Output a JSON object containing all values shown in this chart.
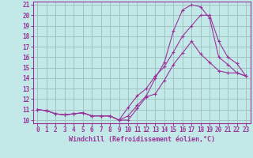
{
  "background_color": "#c2e8e8",
  "grid_color": "#9bbfbf",
  "line_color": "#993399",
  "marker": "+",
  "xlim": [
    -0.5,
    23.5
  ],
  "ylim": [
    9.7,
    21.3
  ],
  "xticks": [
    0,
    1,
    2,
    3,
    4,
    5,
    6,
    7,
    8,
    9,
    10,
    11,
    12,
    13,
    14,
    15,
    16,
    17,
    18,
    19,
    20,
    21,
    22,
    23
  ],
  "yticks": [
    10,
    11,
    12,
    13,
    14,
    15,
    16,
    17,
    18,
    19,
    20,
    21
  ],
  "xlabel": "Windchill (Refroidissement éolien,°C)",
  "series1_x": [
    0,
    1,
    2,
    3,
    4,
    5,
    6,
    7,
    8,
    9,
    10,
    11,
    12,
    13,
    14,
    15,
    16,
    17,
    18,
    19,
    20,
    21,
    22,
    23
  ],
  "series1_y": [
    11.0,
    10.9,
    10.6,
    10.5,
    10.6,
    10.7,
    10.4,
    10.4,
    10.4,
    10.0,
    10.0,
    11.1,
    12.2,
    12.5,
    13.8,
    15.3,
    16.4,
    17.5,
    16.3,
    15.5,
    14.7,
    14.5,
    14.5,
    14.2
  ],
  "series2_x": [
    0,
    1,
    2,
    3,
    4,
    5,
    6,
    7,
    8,
    9,
    10,
    11,
    12,
    13,
    14,
    15,
    16,
    17,
    18,
    19,
    20,
    21,
    22,
    23
  ],
  "series2_y": [
    11.0,
    10.9,
    10.6,
    10.5,
    10.6,
    10.7,
    10.4,
    10.4,
    10.4,
    10.0,
    10.4,
    11.4,
    12.3,
    14.0,
    15.5,
    18.5,
    20.5,
    21.0,
    20.8,
    19.7,
    16.0,
    15.3,
    14.5,
    14.2
  ],
  "series3_x": [
    0,
    1,
    2,
    3,
    4,
    5,
    6,
    7,
    8,
    9,
    10,
    11,
    12,
    13,
    14,
    15,
    16,
    17,
    18,
    19,
    20,
    21,
    22,
    23
  ],
  "series3_y": [
    11.0,
    10.9,
    10.6,
    10.5,
    10.6,
    10.7,
    10.4,
    10.4,
    10.4,
    10.0,
    11.2,
    12.3,
    13.0,
    14.2,
    15.1,
    16.5,
    18.0,
    19.0,
    20.0,
    20.0,
    17.5,
    16.0,
    15.4,
    14.2
  ],
  "tick_fontsize": 5.5,
  "xlabel_fontsize": 6.0
}
